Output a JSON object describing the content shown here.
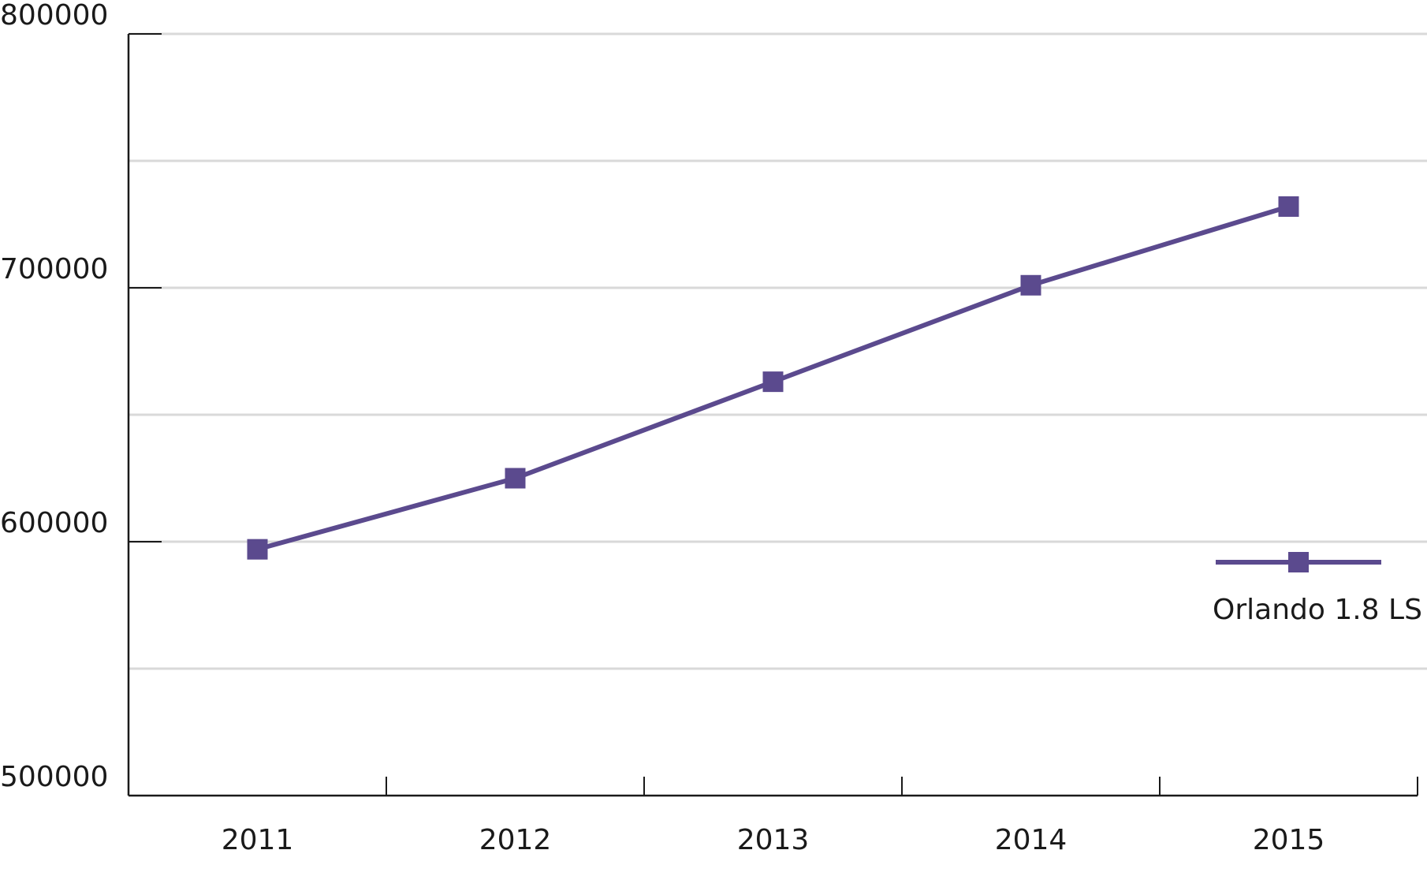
{
  "chart_data": {
    "type": "line",
    "categories": [
      "2011",
      "2012",
      "2013",
      "2014",
      "2015"
    ],
    "series": [
      {
        "name": "Orlando 1.8 LS",
        "color": "#5b4a8e",
        "values": [
          597000,
          625000,
          663000,
          701000,
          732000
        ]
      }
    ],
    "ylim": [
      500000,
      800000
    ],
    "yticks": [
      500000,
      600000,
      700000,
      800000
    ],
    "minor_yticks": [
      550000,
      650000,
      750000
    ],
    "grid": true,
    "legend": "right"
  }
}
